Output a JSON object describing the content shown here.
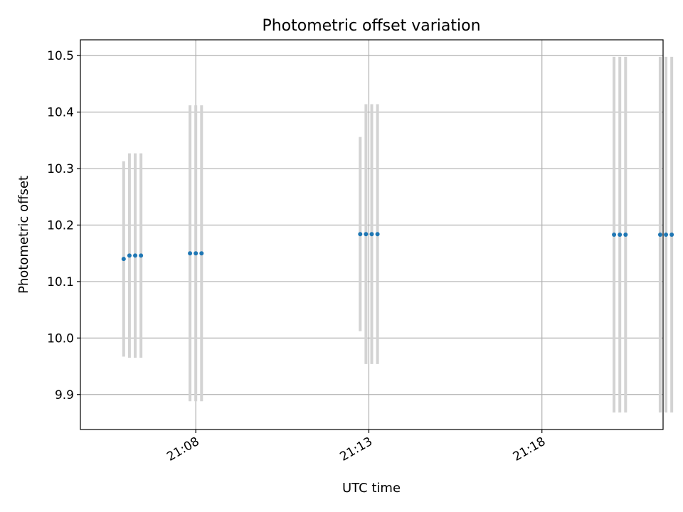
{
  "chart_data": {
    "type": "scatter",
    "title": "Photometric offset variation",
    "xlabel": "UTC time",
    "ylabel": "Photometric offset",
    "x_axis": "time",
    "xlim": [
      "21:04:40",
      "21:21:30"
    ],
    "ylim": [
      9.838,
      10.528
    ],
    "x_ticks": [
      "21:08",
      "21:13",
      "21:18"
    ],
    "y_ticks": [
      9.9,
      10.0,
      10.1,
      10.2,
      10.3,
      10.4,
      10.5
    ],
    "grid": true,
    "legend": "none",
    "colors": {
      "points": "#1f77b4",
      "error_bars": "#d3d3d3",
      "grid": "#b0b0b0"
    },
    "points": [
      {
        "x": "21:05:55",
        "y": 10.14,
        "yerr": 0.173
      },
      {
        "x": "21:06:05",
        "y": 10.146,
        "yerr": 0.181
      },
      {
        "x": "21:06:15",
        "y": 10.146,
        "yerr": 0.181
      },
      {
        "x": "21:06:25",
        "y": 10.146,
        "yerr": 0.181
      },
      {
        "x": "21:07:50",
        "y": 10.15,
        "yerr": 0.262
      },
      {
        "x": "21:08:00",
        "y": 10.15,
        "yerr": 0.262
      },
      {
        "x": "21:08:10",
        "y": 10.15,
        "yerr": 0.262
      },
      {
        "x": "21:12:45",
        "y": 10.184,
        "yerr": 0.172
      },
      {
        "x": "21:12:55",
        "y": 10.184,
        "yerr": 0.23
      },
      {
        "x": "21:13:05",
        "y": 10.184,
        "yerr": 0.23
      },
      {
        "x": "21:13:15",
        "y": 10.184,
        "yerr": 0.23
      },
      {
        "x": "21:20:05",
        "y": 10.183,
        "yerr": 0.315
      },
      {
        "x": "21:20:15",
        "y": 10.183,
        "yerr": 0.315
      },
      {
        "x": "21:20:25",
        "y": 10.183,
        "yerr": 0.315
      },
      {
        "x": "21:21:25",
        "y": 10.183,
        "yerr": 0.315
      },
      {
        "x": "21:21:35",
        "y": 10.183,
        "yerr": 0.315
      },
      {
        "x": "21:21:45",
        "y": 10.183,
        "yerr": 0.315
      }
    ]
  }
}
